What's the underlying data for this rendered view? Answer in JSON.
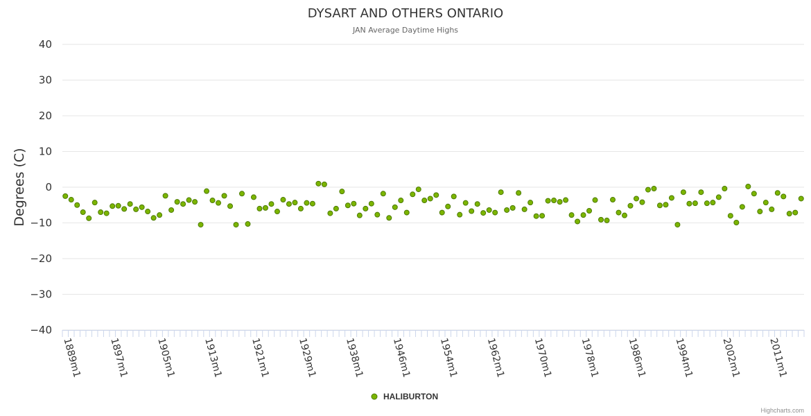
{
  "credits": "Highcharts.com",
  "colors": {
    "marker_fill": "#7cb500",
    "marker_stroke": "#4b7a00",
    "grid": "#e6e6e6",
    "axis_tick": "#ccd6eb"
  },
  "chart_data": {
    "type": "scatter",
    "title": "DYSART AND OTHERS ONTARIO",
    "subtitle": "JAN Average Daytime Highs",
    "ylabel": "Degrees (C)",
    "xlabel": "",
    "ylim": [
      -40,
      40
    ],
    "yticks": [
      40,
      30,
      20,
      10,
      0,
      -10,
      -20,
      -30,
      -40
    ],
    "x_tick_labels": [
      "1889m1",
      "1897m1",
      "1905m1",
      "1913m1",
      "1921m1",
      "1929m1",
      "1938m1",
      "1946m1",
      "1954m1",
      "1962m1",
      "1970m1",
      "1978m1",
      "1986m1",
      "1994m1",
      "2002m1",
      "2011m1"
    ],
    "grid": true,
    "legend_position": "bottom-center",
    "series": [
      {
        "name": "HALIBURTON",
        "color": "#7cb500",
        "values": [
          -2.5,
          -3.5,
          -5,
          -7,
          -8.7,
          -4.3,
          -7,
          -7.3,
          -5.3,
          -5.2,
          -6.1,
          -4.7,
          -6.2,
          -5.6,
          -6.8,
          -8.6,
          -7.8,
          -2.4,
          -6.4,
          -4.1,
          -4.7,
          -3.6,
          -4.1,
          -10.5,
          -1.1,
          -3.7,
          -4.4,
          -2.4,
          -5.3,
          -10.5,
          -1.8,
          -10.3,
          -2.8,
          -6,
          -5.8,
          -4.7,
          -6.8,
          -3.5,
          -4.7,
          -4.3,
          -6,
          -4.4,
          -4.6,
          1,
          0.8,
          -7.3,
          -6,
          -1.2,
          -5.1,
          -4.6,
          -7.9,
          -6,
          -4.6,
          -7.7,
          -1.8,
          -8.6,
          -5.6,
          -3.7,
          -7.1,
          -2,
          -0.6,
          -3.7,
          -3.2,
          -2.2,
          -7.1,
          -5.4,
          -2.6,
          -7.7,
          -4.4,
          -6.7,
          -4.7,
          -7.2,
          -6.4,
          -7.1,
          -1.4,
          -6.4,
          -5.8,
          -1.6,
          -6.2,
          -4.3,
          -8.1,
          -8,
          -3.8,
          -3.7,
          -4.1,
          -3.6,
          -7.8,
          -9.6,
          -7.8,
          -6.6,
          -3.6,
          -9.1,
          -9.3,
          -3.5,
          -7.1,
          -7.9,
          -5.2,
          -3.2,
          -4.2,
          -0.7,
          -0.4,
          -5.1,
          -4.9,
          -3,
          -10.5,
          -1.4,
          -4.6,
          -4.5,
          -1.4,
          -4.5,
          -4.3,
          -2.8,
          -0.4,
          -8,
          -9.9,
          -5.5,
          0.2,
          -1.8,
          -6.8,
          -4.3,
          -6.2,
          -1.6,
          -2.6,
          -7.4,
          -7.1,
          -3.2
        ]
      }
    ]
  }
}
